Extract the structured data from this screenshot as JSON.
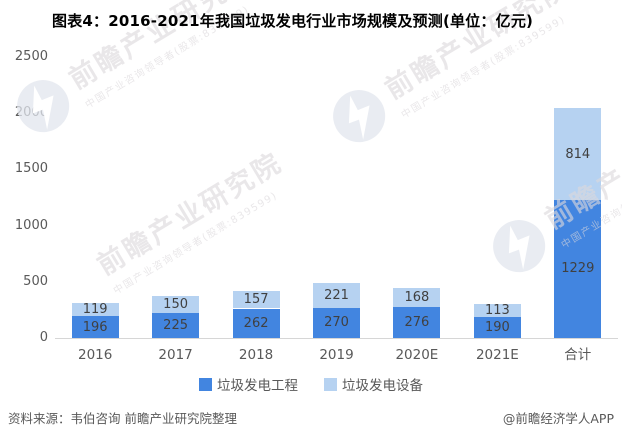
{
  "title": "图表4：2016-2021年我国垃圾发电行业市场规模及预测(单位：亿元)",
  "chart_data": {
    "type": "bar",
    "stacked": true,
    "title": "图表4：2016-2021年我国垃圾发电行业市场规模及预测(单位：亿元)",
    "unit": "亿元",
    "categories": [
      "2016",
      "2017",
      "2018",
      "2019",
      "2020E",
      "2021E",
      "合计"
    ],
    "series": [
      {
        "name": "垃圾发电工程",
        "color": "#4285E0",
        "values": [
          196,
          225,
          262,
          270,
          276,
          190,
          1229
        ]
      },
      {
        "name": "垃圾发电设备",
        "color": "#B6D2F1",
        "values": [
          119,
          150,
          157,
          221,
          168,
          113,
          814
        ]
      }
    ],
    "ylim": [
      0,
      2500
    ],
    "yticks": [
      0,
      500,
      1000,
      1500,
      2000,
      2500
    ],
    "grid": false,
    "legend_position": "bottom",
    "data_labels": true
  },
  "footer": {
    "source": "资料来源：韦伯咨询 前瞻产业研究院整理",
    "credit": "@前瞻经济学人APP"
  },
  "watermark": {
    "brand": "前瞻产业研究院",
    "tagline": "中国产业咨询领导者(股票:839599)"
  },
  "colors": {
    "series1": "#4285E0",
    "series2": "#B6D2F1",
    "axis_line": "#D6D6D6",
    "axis_text": "#595959",
    "value_label": "#404040",
    "title_text": "#000000"
  }
}
